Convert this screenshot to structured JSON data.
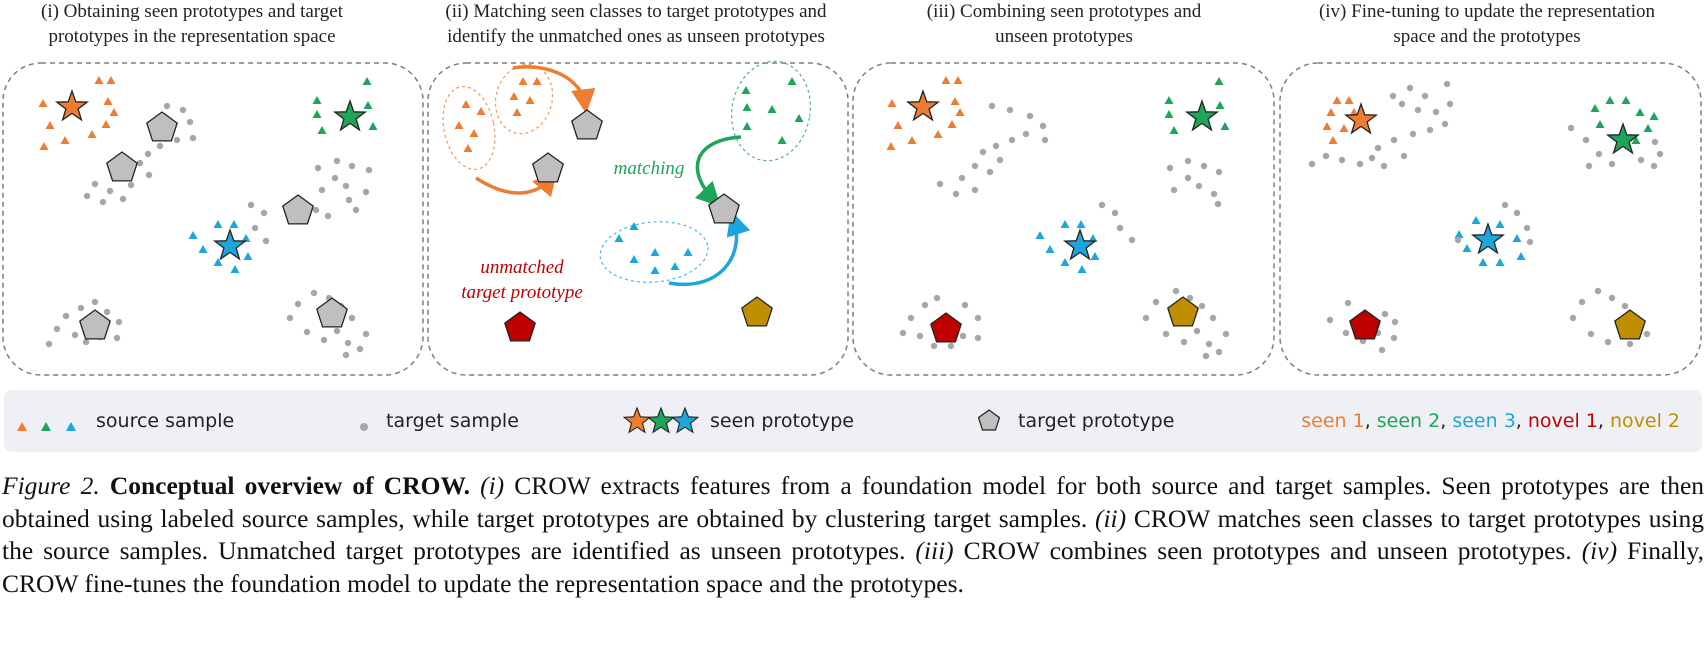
{
  "panels": [
    {
      "title_line1": "(i) Obtaining seen prototypes and target",
      "title_line2": "prototypes in the representation space"
    },
    {
      "title_line1": "(ii) Matching seen classes to target prototypes and",
      "title_line2": "identify the unmatched ones as unseen prototypes"
    },
    {
      "title_line1": "(iii) Combining seen prototypes and",
      "title_line2": "unseen prototypes"
    },
    {
      "title_line1": "(iv) Fine-tuning to update the representation",
      "title_line2": "space and the prototypes"
    }
  ],
  "annotations": {
    "matching": "matching",
    "unmatched_line1": "unmatched",
    "unmatched_line2": "target prototype"
  },
  "legend": {
    "source_sample": "source sample",
    "target_sample": "target sample",
    "seen_prototype": "seen prototype",
    "target_prototype": "target prototype",
    "classes": [
      {
        "label": "seen 1",
        "sep": ", ",
        "color": "#ED7D31"
      },
      {
        "label": "seen 2",
        "sep": ", ",
        "color": "#1EA55A"
      },
      {
        "label": "seen 3",
        "sep": ", ",
        "color": "#1CA6DC"
      },
      {
        "label": "novel 1",
        "sep": ", ",
        "color": "#C00000"
      },
      {
        "label": "novel 2",
        "sep": "",
        "color": "#BF8F00"
      }
    ]
  },
  "colors": {
    "seen1": "#ED7D31",
    "seen2": "#1EA55A",
    "seen3": "#1CA6DC",
    "novel1": "#C00000",
    "novel2": "#BF8F00",
    "target_sample": "#A6A6A6",
    "target_proto": "#BFBFBF",
    "legend_bg": "#EEF0F6"
  },
  "caption": {
    "label": "Figure 2.",
    "title": "Conceptual overview of CROW.",
    "m1": "(i)",
    "t1": " CROW extracts features from a foundation model for both source and target samples. Seen prototypes are then obtained using labeled source samples, while target prototypes are obtained by clustering target samples. ",
    "m2": "(ii)",
    "t2": " CROW matches seen classes to target prototypes using the source samples. Unmatched target prototypes are identified as unseen prototypes. ",
    "m3": "(iii)",
    "t3": " CROW combines seen prototypes and unseen prototypes. ",
    "m4": "(iv)",
    "t4": " Finally, CROW fine-tunes the foundation model to update the representation space and the prototypes."
  }
}
